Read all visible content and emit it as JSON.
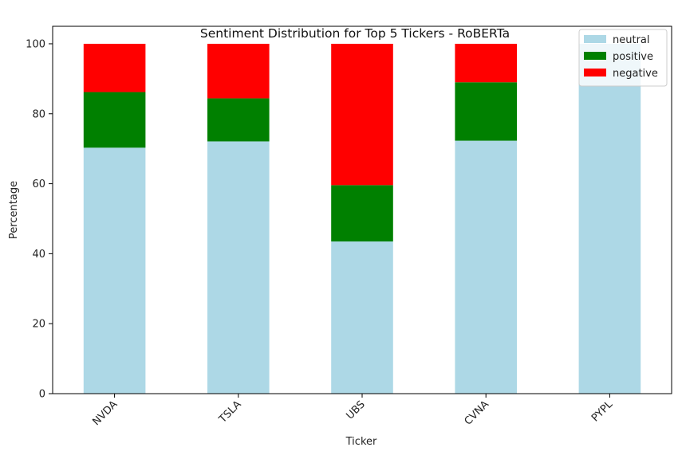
{
  "chart_data": {
    "type": "bar",
    "stacked": true,
    "title": "Sentiment Distribution for Top 5 Tickers - RoBERTa",
    "xlabel": "Ticker",
    "ylabel": "Percentage",
    "categories": [
      "NVDA",
      "TSLA",
      "UBS",
      "CVNA",
      "PYPL"
    ],
    "ylim": [
      0,
      105
    ],
    "yticks": [
      0,
      20,
      40,
      60,
      80,
      100
    ],
    "grid": false,
    "legend_position": "top-right",
    "series": [
      {
        "name": "neutral",
        "color": "#add8e6",
        "values": [
          70.3,
          72.1,
          43.5,
          72.3,
          100
        ]
      },
      {
        "name": "positive",
        "color": "#008000",
        "values": [
          15.9,
          12.3,
          16.1,
          16.7,
          0
        ]
      },
      {
        "name": "negative",
        "color": "#ff0000",
        "values": [
          13.8,
          15.6,
          40.4,
          11.0,
          0
        ]
      }
    ]
  }
}
